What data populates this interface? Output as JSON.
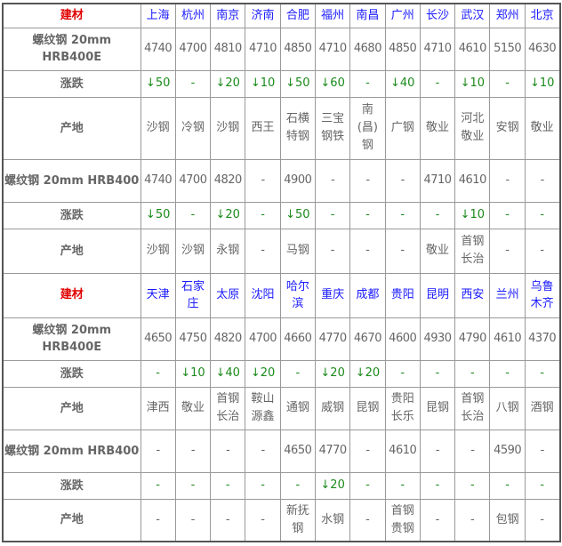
{
  "colors": {
    "header": "#e00000",
    "city": "#1a1aff",
    "change": "#1a8a1a",
    "text": "#666666"
  },
  "sections": [
    {
      "header_label": "建材",
      "cities": [
        "上海",
        "杭州",
        "南京",
        "济南",
        "合肥",
        "福州",
        "南昌",
        "广州",
        "长沙",
        "武汉",
        "郑州",
        "北京"
      ],
      "rows": [
        {
          "label": "螺纹钢 20mm HRB400E",
          "type": "num",
          "values": [
            "4740",
            "4700",
            "4810",
            "4710",
            "4850",
            "4710",
            "4680",
            "4850",
            "4710",
            "4610",
            "5150",
            "4630"
          ]
        },
        {
          "label": "涨跌",
          "type": "chg",
          "values": [
            "↓50",
            "-",
            "↓20",
            "↓10",
            "↓50",
            "↓60",
            "-",
            "↓40",
            "-",
            "↓10",
            "-",
            "↓10"
          ]
        },
        {
          "label": "产地",
          "type": "txt",
          "values": [
            "沙钢",
            "冷钢",
            "沙钢",
            "西王",
            "石横特钢",
            "三宝钢铁",
            "南(昌)钢",
            "广钢",
            "敬业",
            "河北敬业",
            "安钢",
            "敬业"
          ]
        },
        {
          "label": "螺纹钢 20mm HRB400",
          "type": "num",
          "values": [
            "4740",
            "4700",
            "4820",
            "-",
            "4900",
            "-",
            "-",
            "-",
            "4710",
            "4610",
            "-",
            "-"
          ]
        },
        {
          "label": "涨跌",
          "type": "chg",
          "values": [
            "↓50",
            "-",
            "↓20",
            "-",
            "↓50",
            "-",
            "-",
            "-",
            "-",
            "↓10",
            "-",
            "-"
          ]
        },
        {
          "label": "产地",
          "type": "txt",
          "values": [
            "沙钢",
            "沙钢",
            "永钢",
            "-",
            "马钢",
            "-",
            "-",
            "-",
            "敬业",
            "首钢长治",
            "-",
            "-"
          ]
        }
      ]
    },
    {
      "header_label": "建材",
      "cities": [
        "天津",
        "石家庄",
        "太原",
        "沈阳",
        "哈尔滨",
        "重庆",
        "成都",
        "贵阳",
        "昆明",
        "西安",
        "兰州",
        "乌鲁木齐"
      ],
      "rows": [
        {
          "label": "螺纹钢 20mm HRB400E",
          "type": "num",
          "values": [
            "4650",
            "4750",
            "4820",
            "4700",
            "4660",
            "4770",
            "4670",
            "4600",
            "4930",
            "4790",
            "4610",
            "4370"
          ]
        },
        {
          "label": "涨跌",
          "type": "chg",
          "values": [
            "-",
            "↓10",
            "↓40",
            "↓20",
            "-",
            "↓20",
            "↓20",
            "-",
            "-",
            "-",
            "-",
            "-"
          ]
        },
        {
          "label": "产地",
          "type": "txt",
          "values": [
            "津西",
            "敬业",
            "首钢长治",
            "鞍山源鑫",
            "通钢",
            "威钢",
            "昆钢",
            "贵阳长乐",
            "昆钢",
            "首钢长治",
            "八钢",
            "酒钢"
          ]
        },
        {
          "label": "螺纹钢 20mm HRB400",
          "type": "num",
          "values": [
            "-",
            "-",
            "-",
            "-",
            "4650",
            "4770",
            "-",
            "4610",
            "-",
            "-",
            "4590",
            "-"
          ]
        },
        {
          "label": "涨跌",
          "type": "chg",
          "values": [
            "-",
            "-",
            "-",
            "-",
            "-",
            "↓20",
            "-",
            "-",
            "-",
            "-",
            "-",
            "-"
          ]
        },
        {
          "label": "产地",
          "type": "txt",
          "values": [
            "-",
            "-",
            "-",
            "-",
            "新抚钢",
            "水钢",
            "-",
            "首钢贵钢",
            "-",
            "-",
            "包钢",
            "-"
          ]
        }
      ]
    }
  ]
}
